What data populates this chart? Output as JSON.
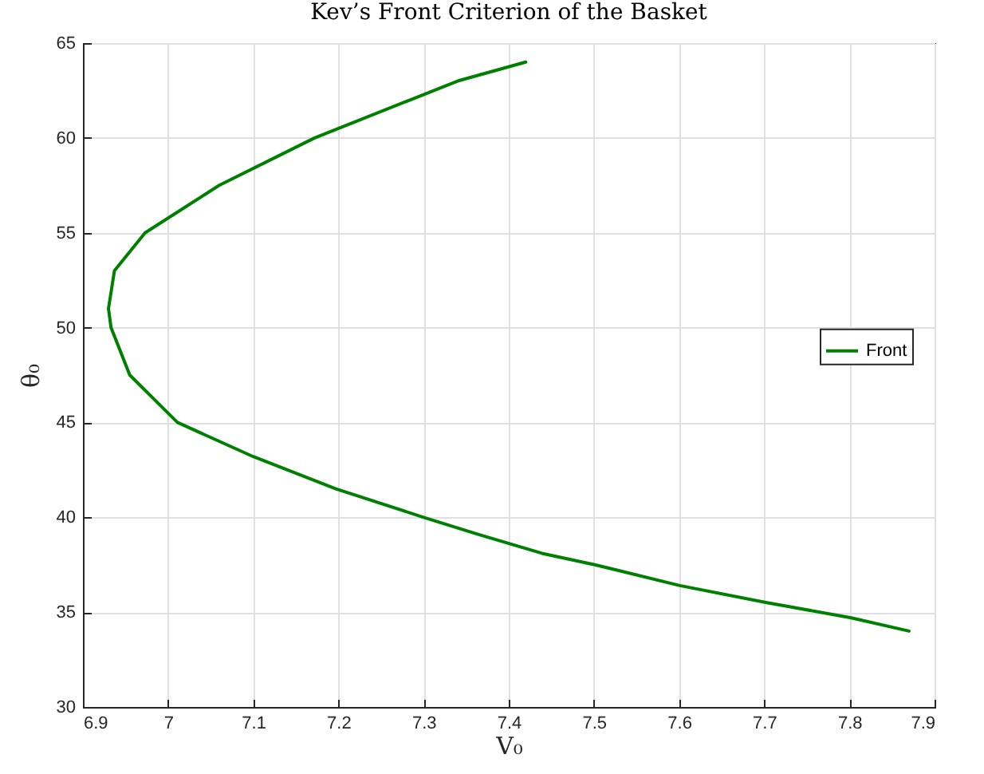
{
  "chart_data": {
    "type": "line",
    "title": "Kev’s Front Criterion of the Basket",
    "xlabel": "V₀",
    "ylabel": "θ₀",
    "xlim": [
      6.9,
      7.9
    ],
    "xticks": [
      6.9,
      7,
      7.1,
      7.2,
      7.3,
      7.4,
      7.5,
      7.6,
      7.7,
      7.8,
      7.9
    ],
    "ylim": [
      30,
      65
    ],
    "yticks": [
      30,
      35,
      40,
      45,
      50,
      55,
      60,
      65
    ],
    "grid": true,
    "legend": "right",
    "line_style": "solid",
    "series": [
      {
        "name": "Front",
        "color": "#008000",
        "x": [
          7.42,
          7.34,
          7.284,
          7.172,
          7.06,
          6.973,
          6.937,
          6.93,
          6.933,
          6.955,
          7.011,
          7.1,
          7.197,
          7.3,
          7.364,
          7.439,
          7.501,
          7.601,
          7.703,
          7.802,
          7.87
        ],
        "values": [
          64,
          63,
          62,
          60,
          57.5,
          55,
          53,
          51,
          50,
          47.5,
          45,
          43.2,
          41.5,
          40,
          39.1,
          38.1,
          37.5,
          36.4,
          35.5,
          34.7,
          34
        ]
      }
    ]
  }
}
